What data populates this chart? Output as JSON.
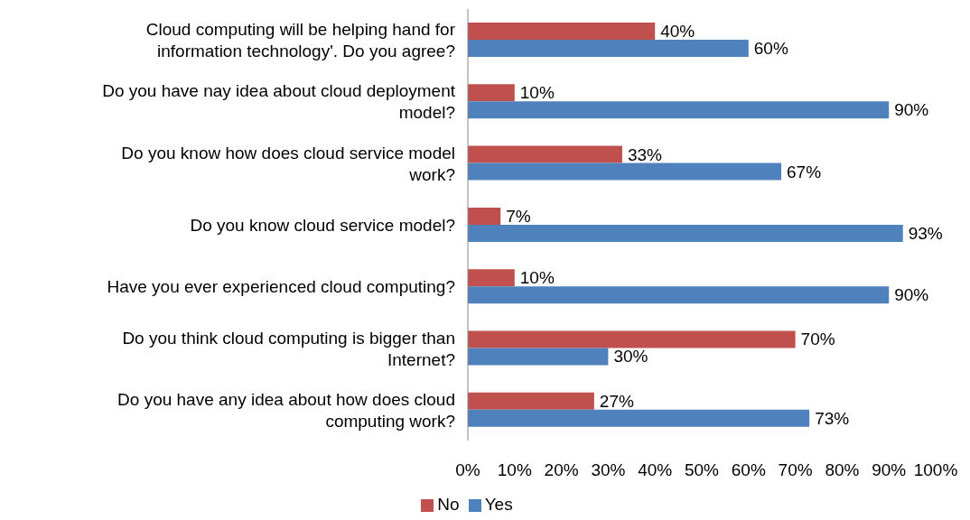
{
  "chart_data": {
    "type": "bar",
    "orientation": "horizontal",
    "categories": [
      "Cloud computing will be helping hand for information technology'. Do you agree?",
      "Do you have nay idea about cloud deployment model?",
      "Do you know how does cloud service model work?",
      "Do you know cloud service model?",
      "Have you ever experienced cloud computing?",
      "Do you think cloud computing is bigger than Internet?",
      "Do you have any idea about how does cloud computing work?"
    ],
    "series": [
      {
        "name": "No",
        "color": "#c0504d",
        "values": [
          40,
          10,
          33,
          7,
          10,
          70,
          27
        ],
        "value_labels": [
          "40%",
          "10%",
          "33%",
          "7%",
          "10%",
          "70%",
          "27%"
        ]
      },
      {
        "name": "Yes",
        "color": "#4f81bd",
        "values": [
          60,
          90,
          67,
          93,
          90,
          30,
          73
        ],
        "value_labels": [
          "60%",
          "90%",
          "67%",
          "93%",
          "90%",
          "30%",
          "73%"
        ]
      }
    ],
    "xlim": [
      0,
      100
    ],
    "xticks": [
      {
        "value": 0,
        "label": "0%"
      },
      {
        "value": 10,
        "label": "10%"
      },
      {
        "value": 20,
        "label": "20%"
      },
      {
        "value": 30,
        "label": "30%"
      },
      {
        "value": 40,
        "label": "40%"
      },
      {
        "value": 50,
        "label": "50%"
      },
      {
        "value": 60,
        "label": "60%"
      },
      {
        "value": 70,
        "label": "70%"
      },
      {
        "value": 80,
        "label": "80%"
      },
      {
        "value": 90,
        "label": "90%"
      },
      {
        "value": 100,
        "label": "100%"
      }
    ],
    "grid": false,
    "legend": "bottom"
  }
}
